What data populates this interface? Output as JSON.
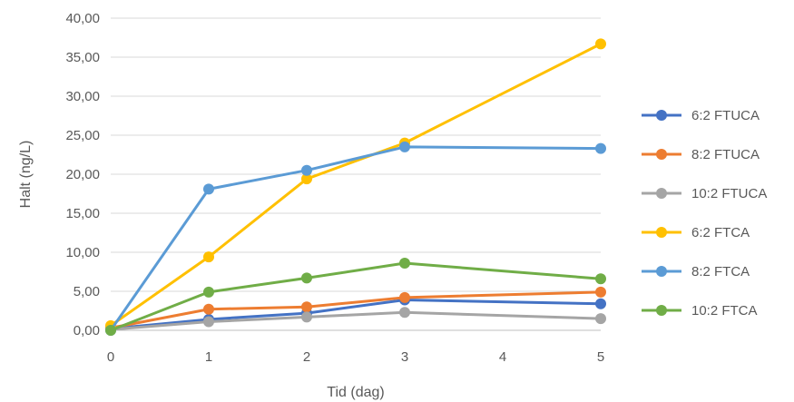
{
  "chart_data": {
    "type": "line",
    "title": "",
    "xlabel": "Tid (dag)",
    "ylabel": "Halt (ng/L)",
    "x": [
      0,
      1,
      2,
      3,
      5
    ],
    "xlim": [
      0,
      5
    ],
    "xticks": [
      "0",
      "1",
      "2",
      "3",
      "4",
      "5"
    ],
    "ylim": [
      0,
      40
    ],
    "yticks": [
      "0,00",
      "5,00",
      "10,00",
      "15,00",
      "20,00",
      "25,00",
      "30,00",
      "35,00",
      "40,00"
    ],
    "grid": "horizontal",
    "legend_position": "right",
    "series": [
      {
        "name": "6:2 FTUCA",
        "color": "#4472C4",
        "values": [
          0.2,
          1.4,
          2.2,
          3.9,
          3.4
        ]
      },
      {
        "name": "8:2 FTUCA",
        "color": "#ED7D31",
        "values": [
          0.3,
          2.7,
          3.0,
          4.2,
          4.9
        ]
      },
      {
        "name": "10:2 FTUCA",
        "color": "#A5A5A5",
        "values": [
          0.1,
          1.1,
          1.7,
          2.3,
          1.5
        ]
      },
      {
        "name": "6:2 FTCA",
        "color": "#FFC000",
        "values": [
          0.6,
          9.4,
          19.4,
          24.0,
          36.7
        ]
      },
      {
        "name": "8:2 FTCA",
        "color": "#5B9BD5",
        "values": [
          0.0,
          18.1,
          20.5,
          23.5,
          23.3
        ]
      },
      {
        "name": "10:2 FTCA",
        "color": "#70AD47",
        "values": [
          0.0,
          4.9,
          6.7,
          8.6,
          6.6
        ]
      }
    ]
  }
}
